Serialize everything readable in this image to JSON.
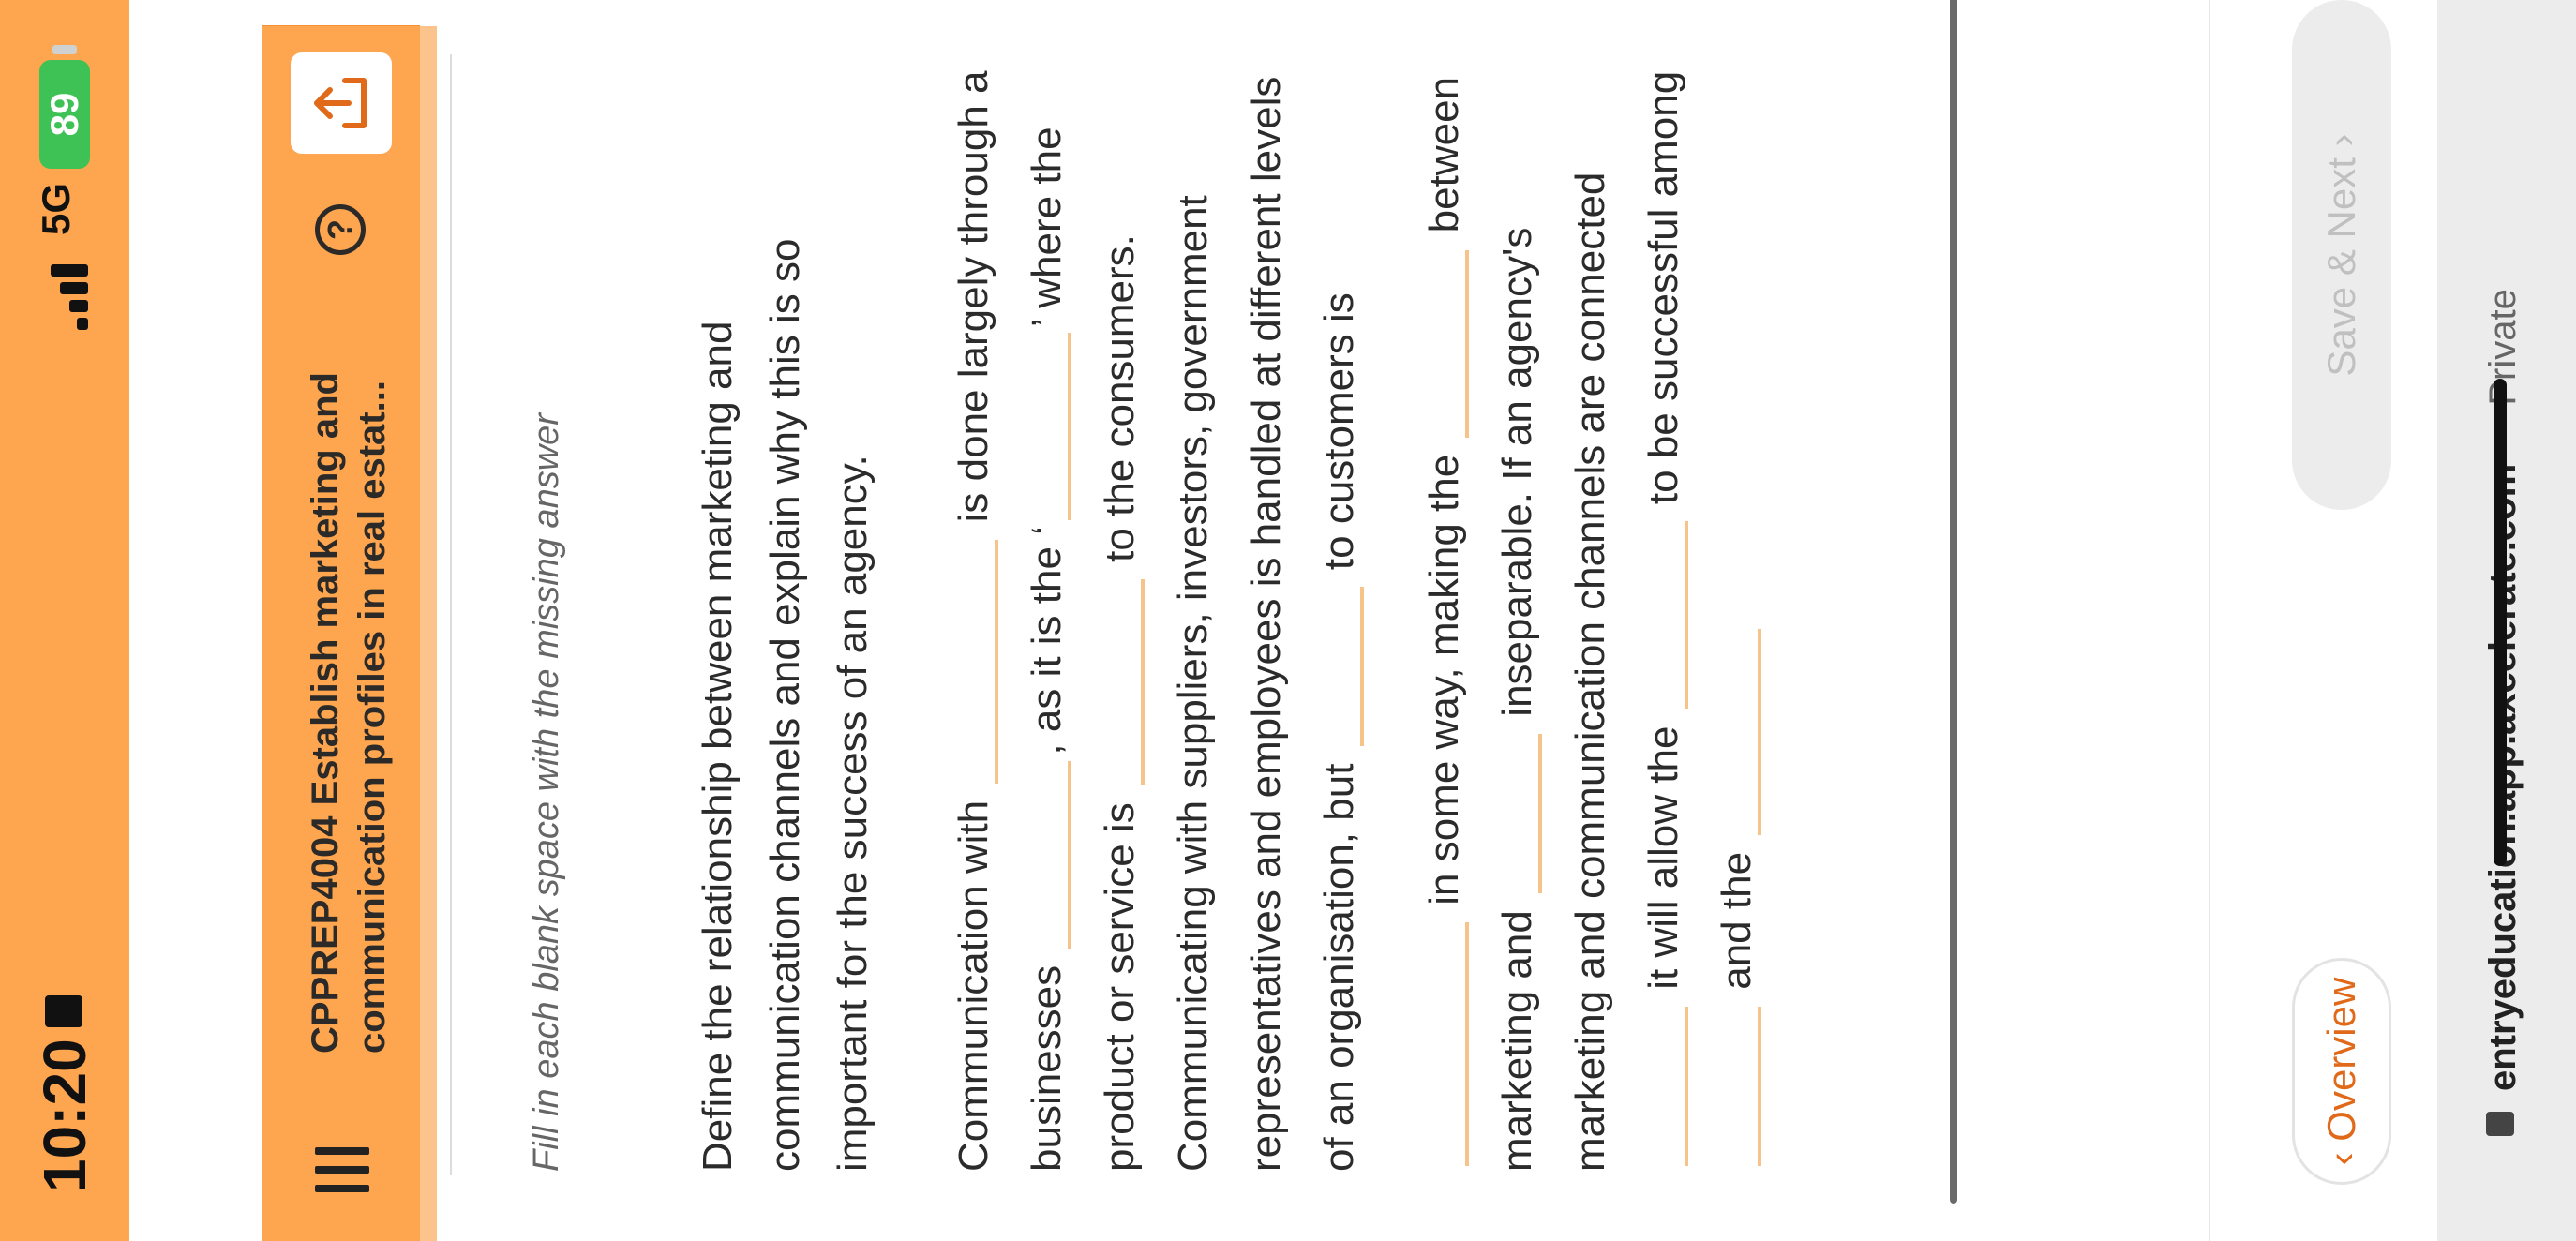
{
  "status_bar": {
    "time": "10:20",
    "network": "5G",
    "battery": "89"
  },
  "header": {
    "title": "CPPREP4004 Establish marketing and communication profiles in real estat..."
  },
  "instruction": "Fill in each blank space with the missing answer",
  "question": "Define the relationship between marketing and communication channels and explain why this is so important for the success of an agency.",
  "cloze": {
    "p1": {
      "t1": "Communication with",
      "t2": "is done largely through a businesses",
      "t3": ",",
      "t4": "as it is the ‘",
      "t5": "’ where the product or service is",
      "t6": "to the consumers. Communicating with suppliers, investors, government representatives and employees is handled at different levels of an organisation, but",
      "t7": "to customers is"
    },
    "p2": {
      "t1": "in some way, making the",
      "t2": "between marketing and",
      "t3": "inseparable. If an agency's marketing and communication channels are connected",
      "t4": "it will allow the",
      "t5": "to be successful among",
      "t6": "and the"
    }
  },
  "footer": {
    "overview_label": "Overview",
    "save_next_label": "Save & Next"
  },
  "url_bar": {
    "domain": "entryeducation.app.axcelerate.com",
    "separator": " — ",
    "mode": "Private"
  },
  "colors": {
    "accent": "#fda54f",
    "brand_orange": "#e06a19",
    "blank_underline": "#f6c38a"
  }
}
